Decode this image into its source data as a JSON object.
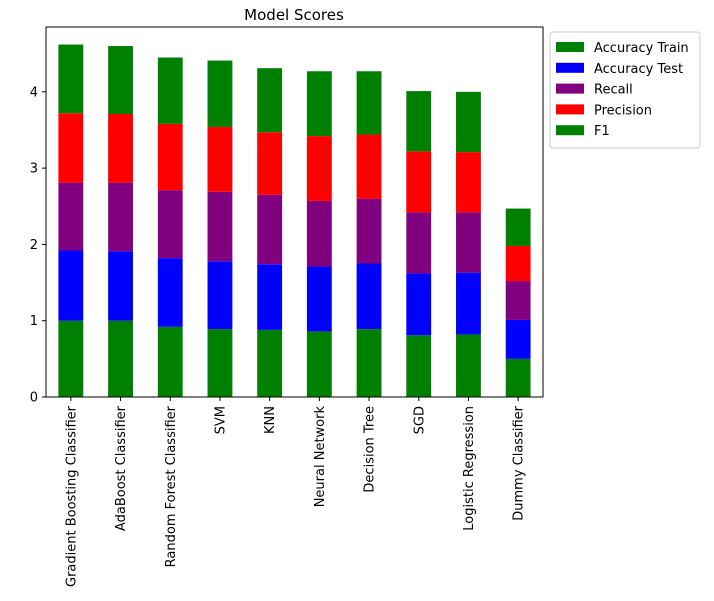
{
  "chart_data": {
    "type": "bar",
    "stacked": true,
    "title": "Model Scores",
    "xlabel": "",
    "ylabel": "",
    "ylim": [
      0,
      4.85
    ],
    "yticks": [
      0,
      1,
      2,
      3,
      4
    ],
    "grid": false,
    "legend_position": "outside-top-right",
    "categories": [
      "Gradient Boosting Classifier",
      "AdaBoost Classifier",
      "Random Forest Classifier",
      "SVM",
      "KNN",
      "Neural Network",
      "Decision Tree",
      "SGD",
      "Logistic Regression",
      "Dummy Classifier"
    ],
    "series": [
      {
        "name": "Accuracy Train",
        "color": "#008000",
        "values": [
          1.0,
          1.0,
          0.92,
          0.89,
          0.88,
          0.86,
          0.89,
          0.81,
          0.82,
          0.5
        ]
      },
      {
        "name": "Accuracy Test",
        "color": "#0000ff",
        "values": [
          0.92,
          0.91,
          0.9,
          0.89,
          0.86,
          0.85,
          0.86,
          0.81,
          0.81,
          0.51
        ]
      },
      {
        "name": "Recall",
        "color": "#800080",
        "values": [
          0.89,
          0.9,
          0.89,
          0.91,
          0.91,
          0.86,
          0.85,
          0.8,
          0.79,
          0.51
        ]
      },
      {
        "name": "Precision",
        "color": "#ff0000",
        "values": [
          0.91,
          0.9,
          0.87,
          0.85,
          0.82,
          0.85,
          0.84,
          0.8,
          0.79,
          0.46
        ]
      },
      {
        "name": "F1",
        "color": "#008000",
        "values": [
          0.9,
          0.89,
          0.87,
          0.87,
          0.84,
          0.85,
          0.83,
          0.79,
          0.79,
          0.49
        ]
      }
    ]
  }
}
